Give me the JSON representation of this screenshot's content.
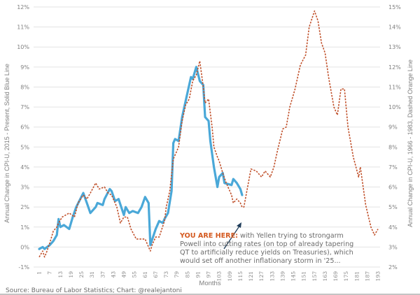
{
  "chart_data": {
    "type": "line",
    "title": "",
    "xlabel": "Months",
    "ylabel_left": "Annual Change in CPI-U, 2015 - Present, Solid Blue Line",
    "ylabel_right": "Annual Change in CPI-U, 1966 - 1983, Dashed Orange Line",
    "ylim_left": [
      -1,
      12
    ],
    "ylim_right": [
      2,
      15
    ],
    "xlim": [
      1,
      193
    ],
    "x_ticks": [
      "1",
      "7",
      "13",
      "19",
      "25",
      "31",
      "37",
      "43",
      "49",
      "55",
      "61",
      "67",
      "73",
      "79",
      "85",
      "91",
      "97",
      "103",
      "109",
      "115",
      "121",
      "127",
      "133",
      "139",
      "145",
      "151",
      "157",
      "163",
      "169",
      "175",
      "181",
      "187",
      "193"
    ],
    "y_ticks_left": [
      "-1%",
      "0%",
      "1%",
      "2%",
      "3%",
      "4%",
      "5%",
      "6%",
      "7%",
      "8%",
      "9%",
      "10%",
      "11%",
      "12%"
    ],
    "y_ticks_right": [
      "2%",
      "3%",
      "4%",
      "5%",
      "6%",
      "7%",
      "8%",
      "9%",
      "10%",
      "11%",
      "12%",
      "13%",
      "14%",
      "15%"
    ],
    "grid": true,
    "series": [
      {
        "name": "CPI-U 2015 - Present",
        "axis": "left",
        "style": "solid",
        "color": "#4aa8d8",
        "x": [
          1,
          3,
          4,
          7,
          9,
          11,
          12,
          13,
          15,
          18,
          20,
          22,
          26,
          28,
          30,
          33,
          34,
          37,
          38,
          41,
          42,
          44,
          46,
          49,
          50,
          52,
          54,
          57,
          59,
          61,
          63,
          64,
          67,
          69,
          71,
          72,
          74,
          76,
          77,
          78,
          80,
          82,
          84,
          87,
          88,
          90,
          92,
          94,
          95,
          97,
          98,
          100,
          102,
          103,
          105,
          106,
          110,
          111,
          113,
          115,
          116
        ],
        "y": [
          -0.1,
          0,
          -0.1,
          0.1,
          0.3,
          0.6,
          1.4,
          1.0,
          1.1,
          0.9,
          1.5,
          2.0,
          2.7,
          2.2,
          1.7,
          2.0,
          2.2,
          2.1,
          2.4,
          2.9,
          2.8,
          2.3,
          2.4,
          1.6,
          2.0,
          1.7,
          1.8,
          1.7,
          2.0,
          2.5,
          2.2,
          0.1,
          0.9,
          1.3,
          1.2,
          1.4,
          1.7,
          2.8,
          5.2,
          5.4,
          5.3,
          6.5,
          7.3,
          8.5,
          8.4,
          9.0,
          8.3,
          8.1,
          6.5,
          6.3,
          5.3,
          4.0,
          3.0,
          3.5,
          3.7,
          3.2,
          3.1,
          3.4,
          3.2,
          2.9,
          2.6
        ]
      },
      {
        "name": "CPI-U 1966 - 1983",
        "axis": "right",
        "style": "dashed",
        "color": "#c0502a",
        "x": [
          1,
          3,
          4,
          5,
          7,
          9,
          11,
          12,
          14,
          18,
          21,
          23,
          26,
          28,
          30,
          33,
          35,
          38,
          40,
          42,
          45,
          47,
          49,
          51,
          53,
          56,
          58,
          61,
          62,
          64,
          65,
          67,
          69,
          72,
          73,
          75,
          77,
          80,
          82,
          84,
          86,
          88,
          90,
          92,
          94,
          95,
          97,
          99,
          100,
          102,
          103,
          105,
          107,
          108,
          110,
          111,
          113,
          115,
          116,
          117,
          121,
          124,
          127,
          129,
          132,
          134,
          136,
          139,
          141,
          143,
          146,
          149,
          152,
          154,
          157,
          159,
          161,
          163,
          165,
          168,
          170,
          172,
          174,
          176,
          179,
          182,
          183,
          186,
          189,
          191,
          193
        ],
        "y": [
          2.5,
          2.8,
          2.5,
          2.7,
          3.2,
          3.8,
          4.0,
          4.2,
          4.5,
          4.7,
          4.5,
          5.2,
          5.6,
          5.4,
          5.7,
          6.2,
          5.9,
          6.0,
          5.7,
          5.6,
          5.0,
          4.2,
          4.5,
          4.5,
          3.9,
          3.4,
          3.4,
          3.4,
          3.2,
          2.8,
          3.1,
          3.5,
          3.5,
          4.3,
          5.0,
          5.8,
          7.4,
          8.0,
          9.3,
          10.1,
          10.4,
          11.3,
          11.6,
          12.3,
          11.0,
          10.2,
          10.4,
          9.0,
          8.0,
          7.5,
          7.3,
          6.7,
          6.2,
          6.0,
          5.6,
          5.2,
          5.4,
          5.2,
          5.0,
          5.0,
          6.9,
          6.8,
          6.5,
          6.8,
          6.5,
          7.0,
          7.8,
          8.9,
          9.0,
          10.0,
          10.9,
          12.1,
          12.6,
          14.0,
          14.8,
          14.3,
          13.2,
          12.7,
          11.5,
          10.0,
          9.6,
          10.9,
          10.9,
          9.0,
          7.5,
          6.5,
          7.0,
          5.1,
          4.0,
          3.6,
          3.9
        ]
      }
    ],
    "annotation": {
      "highlight": "YOU ARE HERE:",
      "lines": [
        " with Yellen trying to strongarm",
        "Powell into cutting rates (on top of already tapering",
        "QT to artificially reduce yields on Treasuries), which",
        "would set off another inflationary storm in '25..."
      ]
    },
    "source": "Source: Bureau of Labor Statistics; Chart: @realejantoni"
  }
}
